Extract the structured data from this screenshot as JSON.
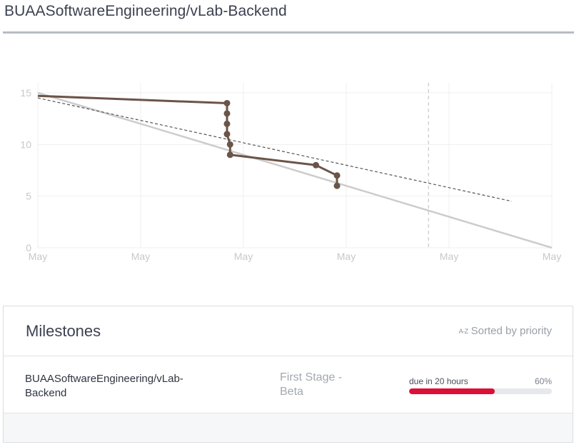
{
  "header": {
    "repo_title": "BUAASoftwareEngineering/vLab-Backend"
  },
  "chart_data": {
    "type": "line",
    "title": "",
    "xlabel": "",
    "ylabel": "",
    "x_tick_labels": [
      "May",
      "May",
      "May",
      "May",
      "May",
      "May"
    ],
    "y_ticks": [
      0,
      5,
      10,
      15
    ],
    "ylim": [
      0,
      15
    ],
    "xlim": [
      0,
      1
    ],
    "grid": true,
    "series": [
      {
        "style": "solid-with-markers",
        "color": "#6b5448",
        "points": [
          {
            "x": 0.0,
            "y": 14.7
          },
          {
            "x": 0.368,
            "y": 14.0
          },
          {
            "x": 0.368,
            "y": 13.0
          },
          {
            "x": 0.368,
            "y": 12.0
          },
          {
            "x": 0.368,
            "y": 11.0
          },
          {
            "x": 0.374,
            "y": 10.0
          },
          {
            "x": 0.374,
            "y": 9.0
          },
          {
            "x": 0.541,
            "y": 8.0
          },
          {
            "x": 0.582,
            "y": 7.0
          },
          {
            "x": 0.582,
            "y": 6.0
          }
        ],
        "marker_indices": [
          1,
          2,
          3,
          4,
          5,
          6,
          7,
          8,
          9
        ]
      },
      {
        "style": "ideal",
        "color": "#cccccc",
        "points": [
          {
            "x": 0.0,
            "y": 15.0
          },
          {
            "x": 1.0,
            "y": 0.0
          }
        ]
      },
      {
        "style": "dashed-trend",
        "color": "#555555",
        "points": [
          {
            "x": 0.0,
            "y": 14.5
          },
          {
            "x": 0.922,
            "y": 4.5
          }
        ]
      }
    ],
    "today_marker_x": 0.76
  },
  "milestones": {
    "title": "Milestones",
    "sort_icon": "A-Z",
    "sort_label": "Sorted by priority",
    "rows": [
      {
        "repo": "BUAASoftwareEngineering/vLab-Backend",
        "milestone": "First Stage - Beta",
        "due": "due in 20 hours",
        "percent_label": "60%",
        "percent": 60,
        "progress_color": "#dc0f37"
      }
    ]
  }
}
